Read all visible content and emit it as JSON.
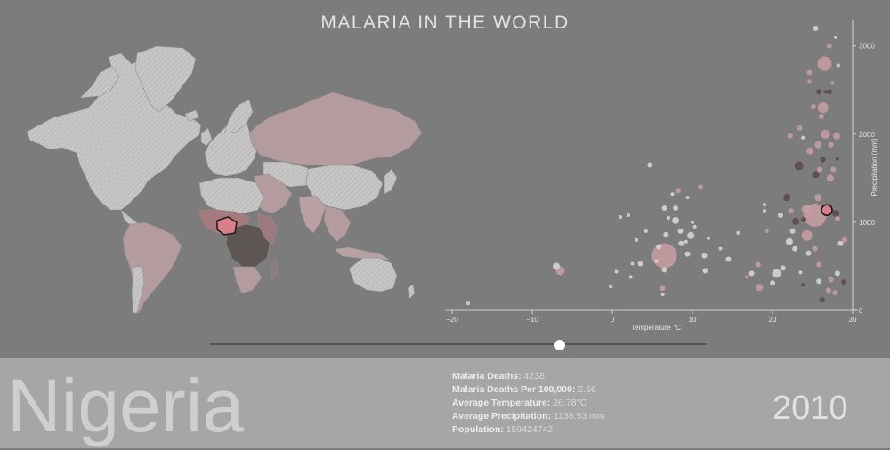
{
  "title": "MALARIA IN THE WORLD",
  "selected_country": "Nigeria",
  "year": "2010",
  "stats": [
    {
      "label": "Malaria Deaths:",
      "value": "4238"
    },
    {
      "label": "Malaria Deaths Per 100,000:",
      "value": "2.66"
    },
    {
      "label": "Average Temperature:",
      "value": "26.78°C"
    },
    {
      "label": "Average Precipitation:",
      "value": "1138.53 mm"
    },
    {
      "label": "Population:",
      "value": "159424742"
    }
  ],
  "slider": {
    "value_fraction": 0.705
  },
  "colors": {
    "background": "#7c7c7c",
    "land_no_data": "#c4c4c4",
    "land_low": "#b9a1a3",
    "land_high": "#5e5555",
    "highlight": "#d97f87",
    "bubble_light": "#d9d9d9",
    "bubble_pink": "#c99ea2",
    "bubble_dark": "#5a4848"
  },
  "chart_data": {
    "type": "scatter",
    "xlabel": "Temperature °C",
    "ylabel": "Precipitation (mm)",
    "xlim": [
      -20,
      30
    ],
    "ylim": [
      0,
      3300
    ],
    "xticks": [
      -20,
      -10,
      0,
      10,
      20,
      30
    ],
    "yticks": [
      0,
      1000,
      2000,
      3000
    ],
    "highlight": {
      "name": "Nigeria",
      "x": 26.78,
      "y": 1138.53,
      "r": 6
    },
    "points": [
      {
        "x": -18,
        "y": 80,
        "r": 2,
        "c": "l"
      },
      {
        "x": -6.5,
        "y": 450,
        "r": 5,
        "c": "p"
      },
      {
        "x": -7,
        "y": 500,
        "r": 4,
        "c": "l"
      },
      {
        "x": -0.2,
        "y": 270,
        "r": 2,
        "c": "l"
      },
      {
        "x": 0.5,
        "y": 440,
        "r": 2,
        "c": "l"
      },
      {
        "x": 1,
        "y": 1060,
        "r": 2,
        "c": "l"
      },
      {
        "x": 2,
        "y": 1080,
        "r": 2,
        "c": "l"
      },
      {
        "x": 2.5,
        "y": 530,
        "r": 2,
        "c": "l"
      },
      {
        "x": 2.3,
        "y": 380,
        "r": 2,
        "c": "l"
      },
      {
        "x": 3,
        "y": 800,
        "r": 2,
        "c": "l"
      },
      {
        "x": 3.5,
        "y": 530,
        "r": 3,
        "c": "l"
      },
      {
        "x": 4.2,
        "y": 900,
        "r": 2,
        "c": "l"
      },
      {
        "x": 4.7,
        "y": 1650,
        "r": 3,
        "c": "l"
      },
      {
        "x": 5.8,
        "y": 720,
        "r": 3,
        "c": "l"
      },
      {
        "x": 5.5,
        "y": 560,
        "r": 2,
        "c": "l"
      },
      {
        "x": 6.5,
        "y": 460,
        "r": 3,
        "c": "l"
      },
      {
        "x": 6.3,
        "y": 250,
        "r": 3,
        "c": "p"
      },
      {
        "x": 6.3,
        "y": 180,
        "r": 2,
        "c": "l"
      },
      {
        "x": 6.7,
        "y": 860,
        "r": 3,
        "c": "l"
      },
      {
        "x": 6.5,
        "y": 1160,
        "r": 3,
        "c": "l"
      },
      {
        "x": 7,
        "y": 1050,
        "r": 2,
        "c": "l"
      },
      {
        "x": 7.5,
        "y": 1320,
        "r": 2,
        "c": "l"
      },
      {
        "x": 7.9,
        "y": 1020,
        "r": 4,
        "c": "l"
      },
      {
        "x": 8.5,
        "y": 900,
        "r": 3,
        "c": "l"
      },
      {
        "x": 7.9,
        "y": 1160,
        "r": 3,
        "c": "l"
      },
      {
        "x": 6.5,
        "y": 620,
        "r": 14,
        "c": "p"
      },
      {
        "x": 8.6,
        "y": 760,
        "r": 3,
        "c": "l"
      },
      {
        "x": 9.4,
        "y": 640,
        "r": 3,
        "c": "l"
      },
      {
        "x": 9.8,
        "y": 850,
        "r": 4,
        "c": "l"
      },
      {
        "x": 10.3,
        "y": 950,
        "r": 2,
        "c": "l"
      },
      {
        "x": 11.5,
        "y": 620,
        "r": 3,
        "c": "l"
      },
      {
        "x": 12,
        "y": 820,
        "r": 2,
        "c": "l"
      },
      {
        "x": 9.2,
        "y": 780,
        "r": 2,
        "c": "l"
      },
      {
        "x": 10,
        "y": 1000,
        "r": 2,
        "c": "l"
      },
      {
        "x": 8.2,
        "y": 1360,
        "r": 3,
        "c": "p"
      },
      {
        "x": 9.4,
        "y": 1280,
        "r": 2,
        "c": "l"
      },
      {
        "x": 11,
        "y": 1400,
        "r": 3,
        "c": "p"
      },
      {
        "x": 11.6,
        "y": 450,
        "r": 3,
        "c": "l"
      },
      {
        "x": 13.5,
        "y": 700,
        "r": 2,
        "c": "l"
      },
      {
        "x": 14.5,
        "y": 580,
        "r": 3,
        "c": "l"
      },
      {
        "x": 15.7,
        "y": 880,
        "r": 2,
        "c": "l"
      },
      {
        "x": 16.8,
        "y": 380,
        "r": 2,
        "c": "p"
      },
      {
        "x": 18.2,
        "y": 520,
        "r": 3,
        "c": "p"
      },
      {
        "x": 19,
        "y": 1130,
        "r": 2,
        "c": "l"
      },
      {
        "x": 19,
        "y": 1200,
        "r": 2,
        "c": "l"
      },
      {
        "x": 19.3,
        "y": 900,
        "r": 2,
        "c": "p"
      },
      {
        "x": 18.4,
        "y": 260,
        "r": 4,
        "c": "p"
      },
      {
        "x": 17.4,
        "y": 420,
        "r": 3,
        "c": "l"
      },
      {
        "x": 20,
        "y": 310,
        "r": 3,
        "c": "l"
      },
      {
        "x": 20.5,
        "y": 420,
        "r": 5,
        "c": "l"
      },
      {
        "x": 21.3,
        "y": 480,
        "r": 3,
        "c": "l"
      },
      {
        "x": 21,
        "y": 1080,
        "r": 3,
        "c": "l"
      },
      {
        "x": 21.8,
        "y": 1280,
        "r": 4,
        "c": "d"
      },
      {
        "x": 22.3,
        "y": 1130,
        "r": 3,
        "c": "p"
      },
      {
        "x": 22.1,
        "y": 780,
        "r": 4,
        "c": "l"
      },
      {
        "x": 22.9,
        "y": 1010,
        "r": 4,
        "c": "d"
      },
      {
        "x": 22.5,
        "y": 900,
        "r": 3,
        "c": "l"
      },
      {
        "x": 22.2,
        "y": 1980,
        "r": 3,
        "c": "p"
      },
      {
        "x": 23.4,
        "y": 2070,
        "r": 3,
        "c": "p"
      },
      {
        "x": 23.8,
        "y": 1960,
        "r": 2,
        "c": "l"
      },
      {
        "x": 22.8,
        "y": 700,
        "r": 3,
        "c": "l"
      },
      {
        "x": 23.5,
        "y": 430,
        "r": 2,
        "c": "l"
      },
      {
        "x": 24.5,
        "y": 650,
        "r": 3,
        "c": "l"
      },
      {
        "x": 23.8,
        "y": 290,
        "r": 2,
        "c": "d"
      },
      {
        "x": 23.3,
        "y": 1640,
        "r": 5,
        "c": "d"
      },
      {
        "x": 25.3,
        "y": 1080,
        "r": 13,
        "c": "p"
      },
      {
        "x": 24.3,
        "y": 850,
        "r": 6,
        "c": "p"
      },
      {
        "x": 24.2,
        "y": 1150,
        "r": 5,
        "c": "p"
      },
      {
        "x": 23.9,
        "y": 1030,
        "r": 3,
        "c": "d"
      },
      {
        "x": 24.7,
        "y": 1810,
        "r": 4,
        "c": "p"
      },
      {
        "x": 24.6,
        "y": 2700,
        "r": 3,
        "c": "p"
      },
      {
        "x": 24.6,
        "y": 2600,
        "r": 2,
        "c": "p"
      },
      {
        "x": 25.1,
        "y": 2310,
        "r": 3,
        "c": "p"
      },
      {
        "x": 25.4,
        "y": 3200,
        "r": 3,
        "c": "l"
      },
      {
        "x": 25.7,
        "y": 1880,
        "r": 4,
        "c": "p"
      },
      {
        "x": 25.4,
        "y": 1540,
        "r": 4,
        "c": "d"
      },
      {
        "x": 25.9,
        "y": 1600,
        "r": 3,
        "c": "p"
      },
      {
        "x": 26.3,
        "y": 1710,
        "r": 3,
        "c": "d"
      },
      {
        "x": 25.8,
        "y": 2480,
        "r": 3,
        "c": "d"
      },
      {
        "x": 26.1,
        "y": 2200,
        "r": 3,
        "c": "p"
      },
      {
        "x": 26.3,
        "y": 2300,
        "r": 6,
        "c": "p"
      },
      {
        "x": 26.5,
        "y": 2800,
        "r": 8,
        "c": "p"
      },
      {
        "x": 26.6,
        "y": 2480,
        "r": 2,
        "c": "d"
      },
      {
        "x": 26.6,
        "y": 2000,
        "r": 5,
        "c": "p"
      },
      {
        "x": 27.2,
        "y": 1500,
        "r": 4,
        "c": "p"
      },
      {
        "x": 27.1,
        "y": 2480,
        "r": 3,
        "c": "d"
      },
      {
        "x": 27.3,
        "y": 1880,
        "r": 3,
        "c": "p"
      },
      {
        "x": 27.6,
        "y": 1600,
        "r": 3,
        "c": "p"
      },
      {
        "x": 28,
        "y": 1980,
        "r": 4,
        "c": "p"
      },
      {
        "x": 28.1,
        "y": 1720,
        "r": 2,
        "c": "d"
      },
      {
        "x": 25.7,
        "y": 1280,
        "r": 4,
        "c": "p"
      },
      {
        "x": 25.3,
        "y": 700,
        "r": 3,
        "c": "p"
      },
      {
        "x": 25.8,
        "y": 330,
        "r": 3,
        "c": "l"
      },
      {
        "x": 26.2,
        "y": 120,
        "r": 3,
        "c": "d"
      },
      {
        "x": 25.8,
        "y": 520,
        "r": 3,
        "c": "p"
      },
      {
        "x": 27,
        "y": 230,
        "r": 3,
        "c": "p"
      },
      {
        "x": 27.3,
        "y": 350,
        "r": 3,
        "c": "p"
      },
      {
        "x": 27.8,
        "y": 200,
        "r": 3,
        "c": "p"
      },
      {
        "x": 28.1,
        "y": 420,
        "r": 3,
        "c": "l"
      },
      {
        "x": 28.9,
        "y": 320,
        "r": 3,
        "c": "d"
      },
      {
        "x": 28.5,
        "y": 760,
        "r": 3,
        "c": "l"
      },
      {
        "x": 29,
        "y": 800,
        "r": 3,
        "c": "p"
      },
      {
        "x": 27.9,
        "y": 1100,
        "r": 4,
        "c": "d"
      },
      {
        "x": 28.1,
        "y": 1040,
        "r": 3,
        "c": "p"
      },
      {
        "x": 27.1,
        "y": 3000,
        "r": 3,
        "c": "p"
      },
      {
        "x": 27.9,
        "y": 3100,
        "r": 2,
        "c": "l"
      },
      {
        "x": 27.5,
        "y": 2580,
        "r": 2,
        "c": "p"
      },
      {
        "x": 28.2,
        "y": 2780,
        "r": 2,
        "c": "l"
      }
    ]
  }
}
